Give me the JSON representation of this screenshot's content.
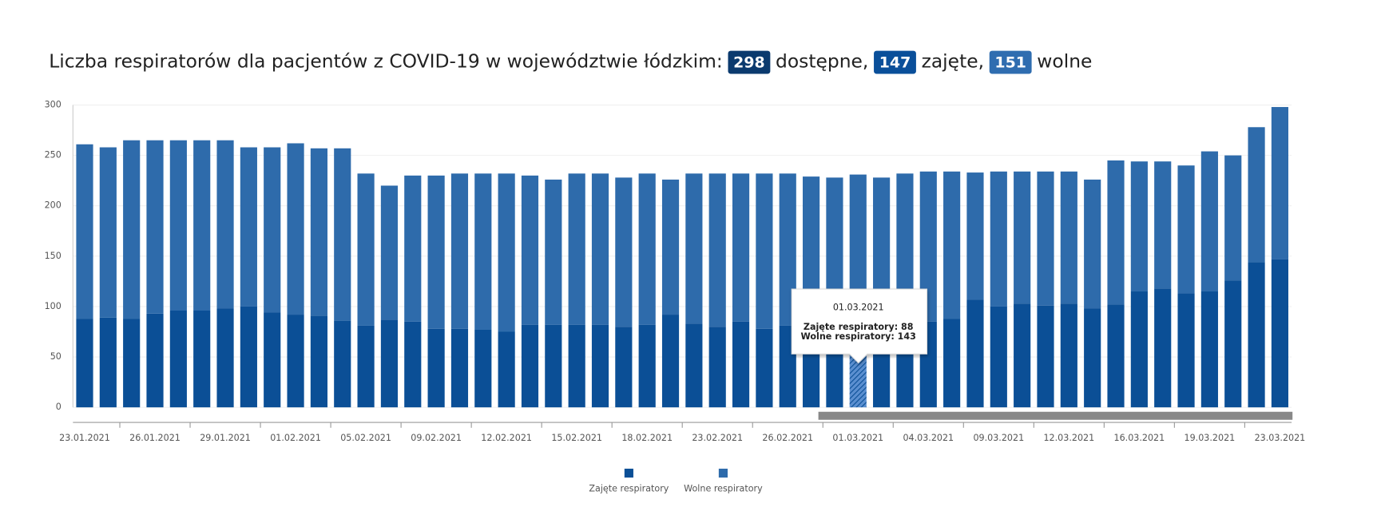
{
  "chart_data": {
    "type": "stacked_bar",
    "title_parts": [
      {
        "text": "Liczba respiratorów dla pacjentów z COVID-19 w województwie łódzkim:"
      },
      {
        "text": "298",
        "badge": "#0b3a6e"
      },
      {
        "text": "dostępne,"
      },
      {
        "text": "147",
        "badge": "#0a4f9a"
      },
      {
        "text": "zajęte,"
      },
      {
        "text": "151",
        "badge": "#2f6db0"
      },
      {
        "text": "wolne"
      }
    ],
    "categories": [
      "23.01.2021",
      null,
      null,
      "26.01.2021",
      null,
      null,
      "29.01.2021",
      null,
      null,
      "01.02.2021",
      null,
      null,
      "05.02.2021",
      null,
      null,
      "09.02.2021",
      null,
      null,
      "12.02.2021",
      null,
      null,
      "15.02.2021",
      null,
      null,
      "18.02.2021",
      null,
      null,
      "23.02.2021",
      null,
      null,
      "26.02.2021",
      null,
      null,
      "01.03.2021",
      null,
      null,
      "04.03.2021",
      null,
      null,
      "09.03.2021",
      null,
      null,
      "12.03.2021",
      null,
      null,
      "16.03.2021",
      null,
      null,
      "19.03.2021",
      null,
      null,
      "23.03.2021"
    ],
    "series": [
      {
        "name": "Zajęte respiratory",
        "color": "#0b4f96",
        "values": [
          88,
          89,
          88,
          93,
          96,
          96,
          98,
          100,
          94,
          92,
          91,
          86,
          81,
          87,
          85,
          78,
          78,
          77,
          75,
          82,
          82,
          82,
          82,
          80,
          82,
          92,
          83,
          80,
          85,
          78,
          81,
          80,
          85,
          88,
          86,
          86,
          85,
          88,
          107,
          100,
          103,
          101,
          103,
          98,
          102,
          115,
          118,
          113,
          115,
          126,
          144,
          147
        ]
      },
      {
        "name": "Wolne respiratory",
        "color": "#2e6bab",
        "values": [
          173,
          169,
          177,
          172,
          169,
          169,
          167,
          158,
          164,
          170,
          166,
          171,
          151,
          133,
          145,
          152,
          154,
          155,
          157,
          148,
          144,
          150,
          150,
          148,
          150,
          134,
          149,
          152,
          147,
          154,
          151,
          149,
          143,
          143,
          142,
          146,
          149,
          146,
          126,
          134,
          131,
          133,
          131,
          128,
          143,
          129,
          126,
          127,
          139,
          124,
          134,
          151
        ]
      }
    ],
    "ylim": [
      0,
      300
    ],
    "yticks": [
      0,
      50,
      100,
      150,
      200,
      250,
      300
    ],
    "grid": true,
    "highlight_index": 33,
    "tooltip": {
      "title": "01.03.2021",
      "lines": [
        "Zajęte respiratory: 88",
        "Wolne respiratory: 143"
      ]
    }
  }
}
